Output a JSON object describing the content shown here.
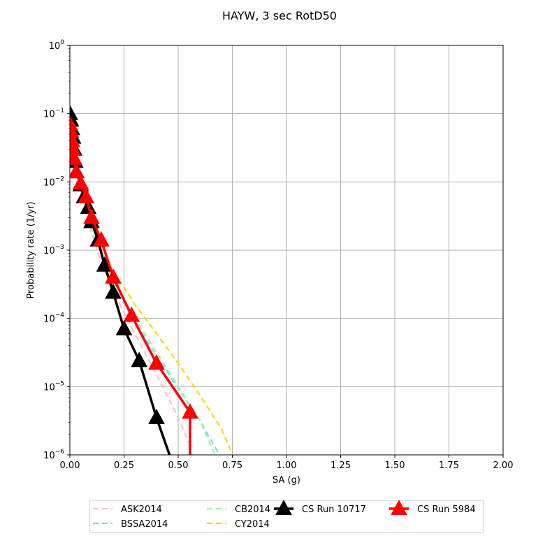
{
  "chart_data": {
    "type": "line",
    "title": "HAYW, 3 sec RotD50",
    "xlabel": "SA (g)",
    "ylabel": "Probability rate (1/yr)",
    "xlim": [
      0,
      2.0
    ],
    "ylim": [
      1e-06,
      1
    ],
    "yscale": "log",
    "grid": true,
    "legend_placement": "below plot, 4 columns",
    "x_ticks": [
      "0.00",
      "0.25",
      "0.50",
      "0.75",
      "1.00",
      "1.25",
      "1.50",
      "1.75",
      "2.00"
    ],
    "x_tick_values": [
      0,
      0.25,
      0.5,
      0.75,
      1.0,
      1.25,
      1.5,
      1.75,
      2.0
    ],
    "y_ticks": [
      {
        "base": "10",
        "exp": "0",
        "value": 1
      },
      {
        "base": "10",
        "exp": "−1",
        "value": 0.1
      },
      {
        "base": "10",
        "exp": "−2",
        "value": 0.01
      },
      {
        "base": "10",
        "exp": "−3",
        "value": 0.001
      },
      {
        "base": "10",
        "exp": "−4",
        "value": 0.0001
      },
      {
        "base": "10",
        "exp": "−5",
        "value": 1e-05
      },
      {
        "base": "10",
        "exp": "−6",
        "value": 1e-06
      }
    ],
    "series": [
      {
        "name": "ASK2014",
        "color": "#ffc0cb",
        "style": "dashed",
        "x": [
          0.0,
          0.02,
          0.05,
          0.1,
          0.15,
          0.2,
          0.3,
          0.4,
          0.5,
          0.55
        ],
        "y": [
          0.06,
          0.025,
          0.008,
          0.0018,
          0.0006,
          0.00025,
          6e-05,
          1.5e-05,
          3.5e-06,
          1.5e-06
        ]
      },
      {
        "name": "BSSA2014",
        "color": "#87cefa",
        "style": "dashed",
        "x": [
          0.0,
          0.02,
          0.05,
          0.1,
          0.15,
          0.2,
          0.3,
          0.4,
          0.5,
          0.6,
          0.69
        ],
        "y": [
          0.06,
          0.025,
          0.008,
          0.002,
          0.0008,
          0.0003,
          9e-05,
          2.8e-05,
          9.5e-06,
          3.2e-06,
          1e-06
        ]
      },
      {
        "name": "CB2014",
        "color": "#98fb98",
        "style": "dashed",
        "x": [
          0.0,
          0.02,
          0.05,
          0.1,
          0.15,
          0.2,
          0.3,
          0.4,
          0.5,
          0.6,
          0.67
        ],
        "y": [
          0.06,
          0.025,
          0.008,
          0.002,
          0.0008,
          0.00035,
          0.0001,
          3.2e-05,
          1e-05,
          3.2e-06,
          1e-06
        ]
      },
      {
        "name": "CY2014",
        "color": "#ffd700",
        "style": "dashed",
        "x": [
          0.0,
          0.02,
          0.05,
          0.1,
          0.15,
          0.2,
          0.3,
          0.4,
          0.5,
          0.6,
          0.7,
          0.75
        ],
        "y": [
          0.07,
          0.03,
          0.01,
          0.0026,
          0.0011,
          0.0005,
          0.00016,
          6e-05,
          2.2e-05,
          7.5e-06,
          2.4e-06,
          1e-06
        ]
      },
      {
        "name": "CS Run 10717",
        "color": "#000000",
        "style": "solid",
        "marker": "triangle",
        "x": [
          0.0,
          0.005,
          0.01,
          0.015,
          0.02,
          0.025,
          0.03,
          0.05,
          0.065,
          0.085,
          0.1,
          0.13,
          0.16,
          0.2,
          0.25,
          0.32,
          0.4,
          0.46
        ],
        "y": [
          0.1,
          0.08,
          0.06,
          0.045,
          0.03,
          0.02,
          0.014,
          0.009,
          0.006,
          0.0042,
          0.0026,
          0.0014,
          0.0006,
          0.00024,
          7e-05,
          2.4e-05,
          3.5e-06,
          1e-06
        ]
      },
      {
        "name": "CS Run 5984",
        "color": "#ff0000",
        "style": "solid",
        "marker": "triangle",
        "x": [
          0.0,
          0.005,
          0.01,
          0.015,
          0.02,
          0.03,
          0.05,
          0.075,
          0.1,
          0.145,
          0.2,
          0.285,
          0.4,
          0.555,
          0.555
        ],
        "y": [
          0.07,
          0.055,
          0.04,
          0.03,
          0.022,
          0.014,
          0.0095,
          0.006,
          0.003,
          0.0014,
          0.0004,
          0.00011,
          2.2e-05,
          4.2e-06,
          1e-06
        ]
      }
    ]
  }
}
